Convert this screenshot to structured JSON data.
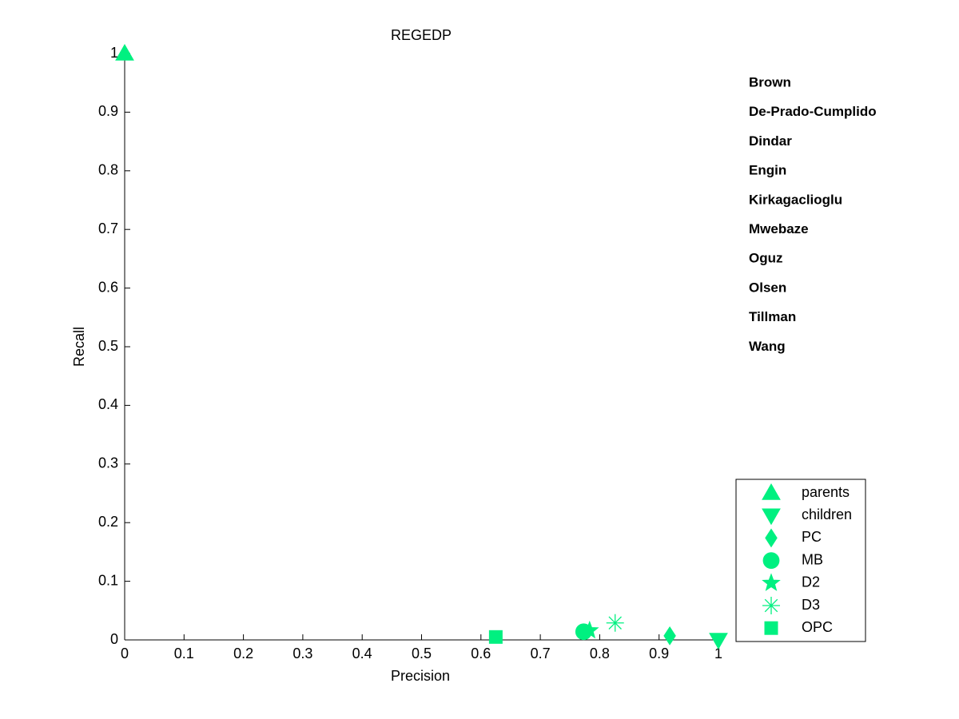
{
  "chart_data": {
    "type": "scatter",
    "title": "REGEDP",
    "x_label": "Precision",
    "y_label": "Recall",
    "xlim": [
      0,
      1
    ],
    "ylim": [
      0,
      1
    ],
    "xticks": [
      0,
      0.1,
      0.2,
      0.3,
      0.4,
      0.5,
      0.6,
      0.7,
      0.8,
      0.9,
      1
    ],
    "yticks": [
      0,
      0.1,
      0.2,
      0.3,
      0.4,
      0.5,
      0.6,
      0.7,
      0.8,
      0.9,
      1
    ],
    "color_key": [
      {
        "name": "Brown",
        "color": "#e00000"
      },
      {
        "name": "De-Prado-Cumplido",
        "color": "#f07d10"
      },
      {
        "name": "Dindar",
        "color": "#f0f000"
      },
      {
        "name": "Engin",
        "color": "#80f000"
      },
      {
        "name": "Kirkagaclioglu",
        "color": "#10e010"
      },
      {
        "name": "Mwebaze",
        "color": "#00f080"
      },
      {
        "name": "Oguz",
        "color": "#00f0f0"
      },
      {
        "name": "Olsen",
        "color": "#0070e0"
      },
      {
        "name": "Tillman",
        "color": "#0000c0"
      },
      {
        "name": "Wang",
        "color": "#8000e0"
      }
    ],
    "series": [
      {
        "name": "parents",
        "marker": "triangle-up",
        "color": "#00f080",
        "x": [
          0
        ],
        "y": [
          1
        ]
      },
      {
        "name": "children",
        "marker": "triangle-down",
        "color": "#00f080",
        "x": [
          1
        ],
        "y": [
          0
        ]
      },
      {
        "name": "PC",
        "marker": "diamond",
        "color": "#00f080",
        "x": [
          0.918
        ],
        "y": [
          0.007
        ]
      },
      {
        "name": "MB",
        "marker": "circle",
        "color": "#00f080",
        "x": [
          0.773
        ],
        "y": [
          0.014
        ]
      },
      {
        "name": "D2",
        "marker": "star",
        "color": "#00f080",
        "x": [
          0.783
        ],
        "y": [
          0.016
        ]
      },
      {
        "name": "D3",
        "marker": "asterisk",
        "color": "#00f080",
        "x": [
          0.826
        ],
        "y": [
          0.029
        ]
      },
      {
        "name": "OPC",
        "marker": "square",
        "color": "#00f080",
        "x": [
          0.625
        ],
        "y": [
          0.005
        ]
      }
    ]
  }
}
